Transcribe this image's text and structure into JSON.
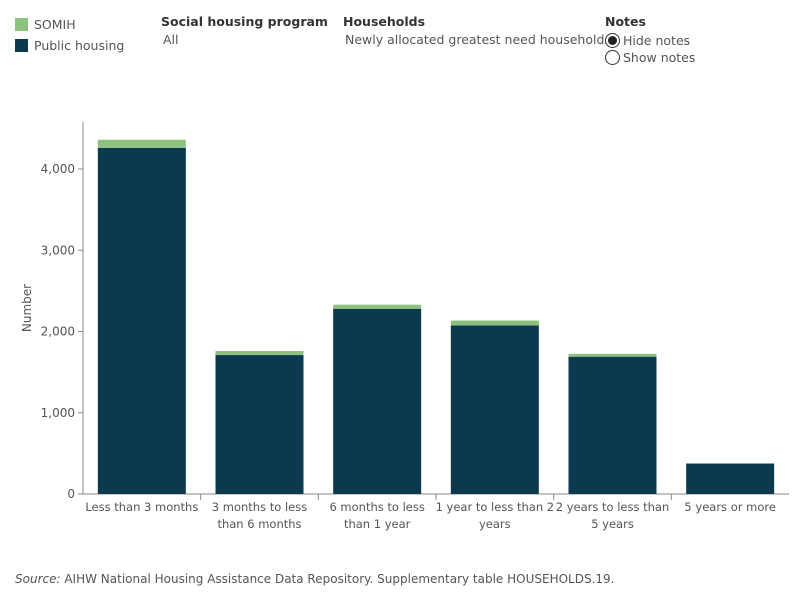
{
  "legend": {
    "items": [
      {
        "label": "SOMIH",
        "color": "#8cc27e"
      },
      {
        "label": "Public housing",
        "color": "#0b3a4e"
      }
    ]
  },
  "filters": {
    "program": {
      "title": "Social housing program",
      "value": "All"
    },
    "households": {
      "title": "Households",
      "value": "Newly allocated greatest need households"
    },
    "notes": {
      "title": "Notes",
      "options": [
        {
          "label": "Hide notes",
          "checked": true
        },
        {
          "label": "Show notes",
          "checked": false
        }
      ]
    }
  },
  "chart_data": {
    "type": "bar",
    "stacked": true,
    "categories": [
      "Less than 3 months",
      "3 months to less than 6 months",
      "6 months to less than 1 year",
      "1 year to less than 2 years",
      "2 years to less than 5 years",
      "5 years or more"
    ],
    "category_lines": [
      [
        "Less than 3 months"
      ],
      [
        "3 months to less",
        "than 6 months"
      ],
      [
        "6 months to less",
        "than 1 year"
      ],
      [
        "1 year to less than 2",
        "years"
      ],
      [
        "2 years to less than",
        "5 years"
      ],
      [
        "5 years or more"
      ]
    ],
    "series": [
      {
        "name": "Public housing",
        "color": "#0b3a4e",
        "values": [
          4260,
          1710,
          2280,
          2075,
          1690,
          375
        ]
      },
      {
        "name": "SOMIH",
        "color": "#8cc27e",
        "values": [
          100,
          50,
          50,
          60,
          35,
          0
        ]
      }
    ],
    "ylabel": "Number",
    "xlabel": "",
    "ylim": [
      0,
      4500
    ],
    "yticks": [
      0,
      1000,
      2000,
      3000,
      4000
    ],
    "ytick_labels": [
      "0",
      "1,000",
      "2,000",
      "3,000",
      "4,000"
    ],
    "grid": false
  },
  "source": {
    "prefix": "Source:",
    "text": " AIHW National Housing Assistance Data Repository. Supplementary table HOUSEHOLDS.19."
  }
}
